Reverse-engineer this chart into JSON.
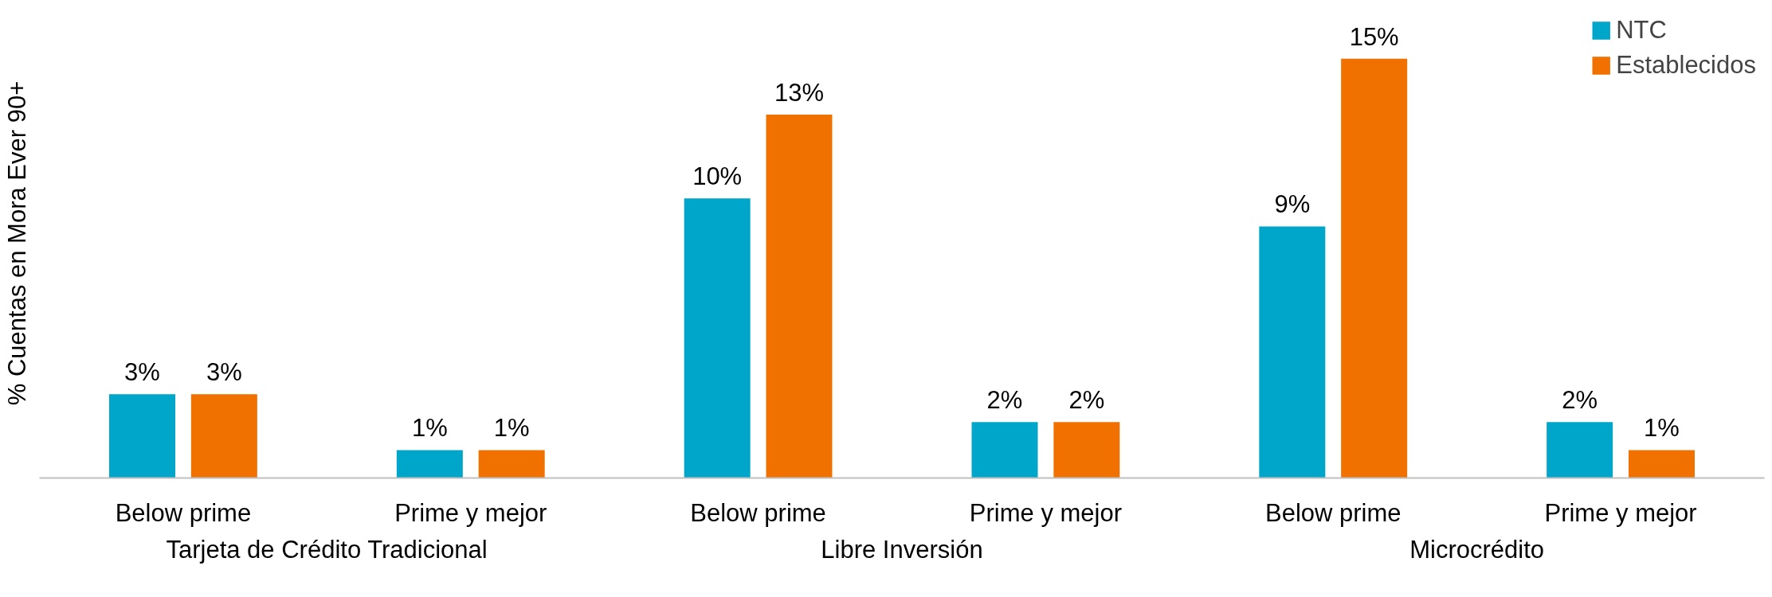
{
  "chart_data": {
    "type": "bar",
    "ylabel": "% Cuentas en Mora Ever 90+",
    "categories": [
      "Below prime",
      "Prime y mejor",
      "Below prime",
      "Prime y mejor",
      "Below prime",
      "Prime y mejor"
    ],
    "annotations": [
      "Tarjeta de Crédito Tradicional",
      "Libre Inversión",
      "Microcrédito"
    ],
    "series": [
      {
        "name": "NTC",
        "color": "#00a6c9",
        "values": [
          3,
          1,
          10,
          2,
          9,
          2
        ],
        "value_labels": [
          "3%",
          "1%",
          "10%",
          "2%",
          "9%",
          "2%"
        ]
      },
      {
        "name": "Establecidos",
        "color": "#f07000",
        "values": [
          3,
          1,
          13,
          2,
          15,
          1
        ],
        "value_labels": [
          "3%",
          "1%",
          "13%",
          "2%",
          "15%",
          "1%"
        ]
      }
    ],
    "tick_labels": "x",
    "legend": "top right",
    "grid": false
  }
}
